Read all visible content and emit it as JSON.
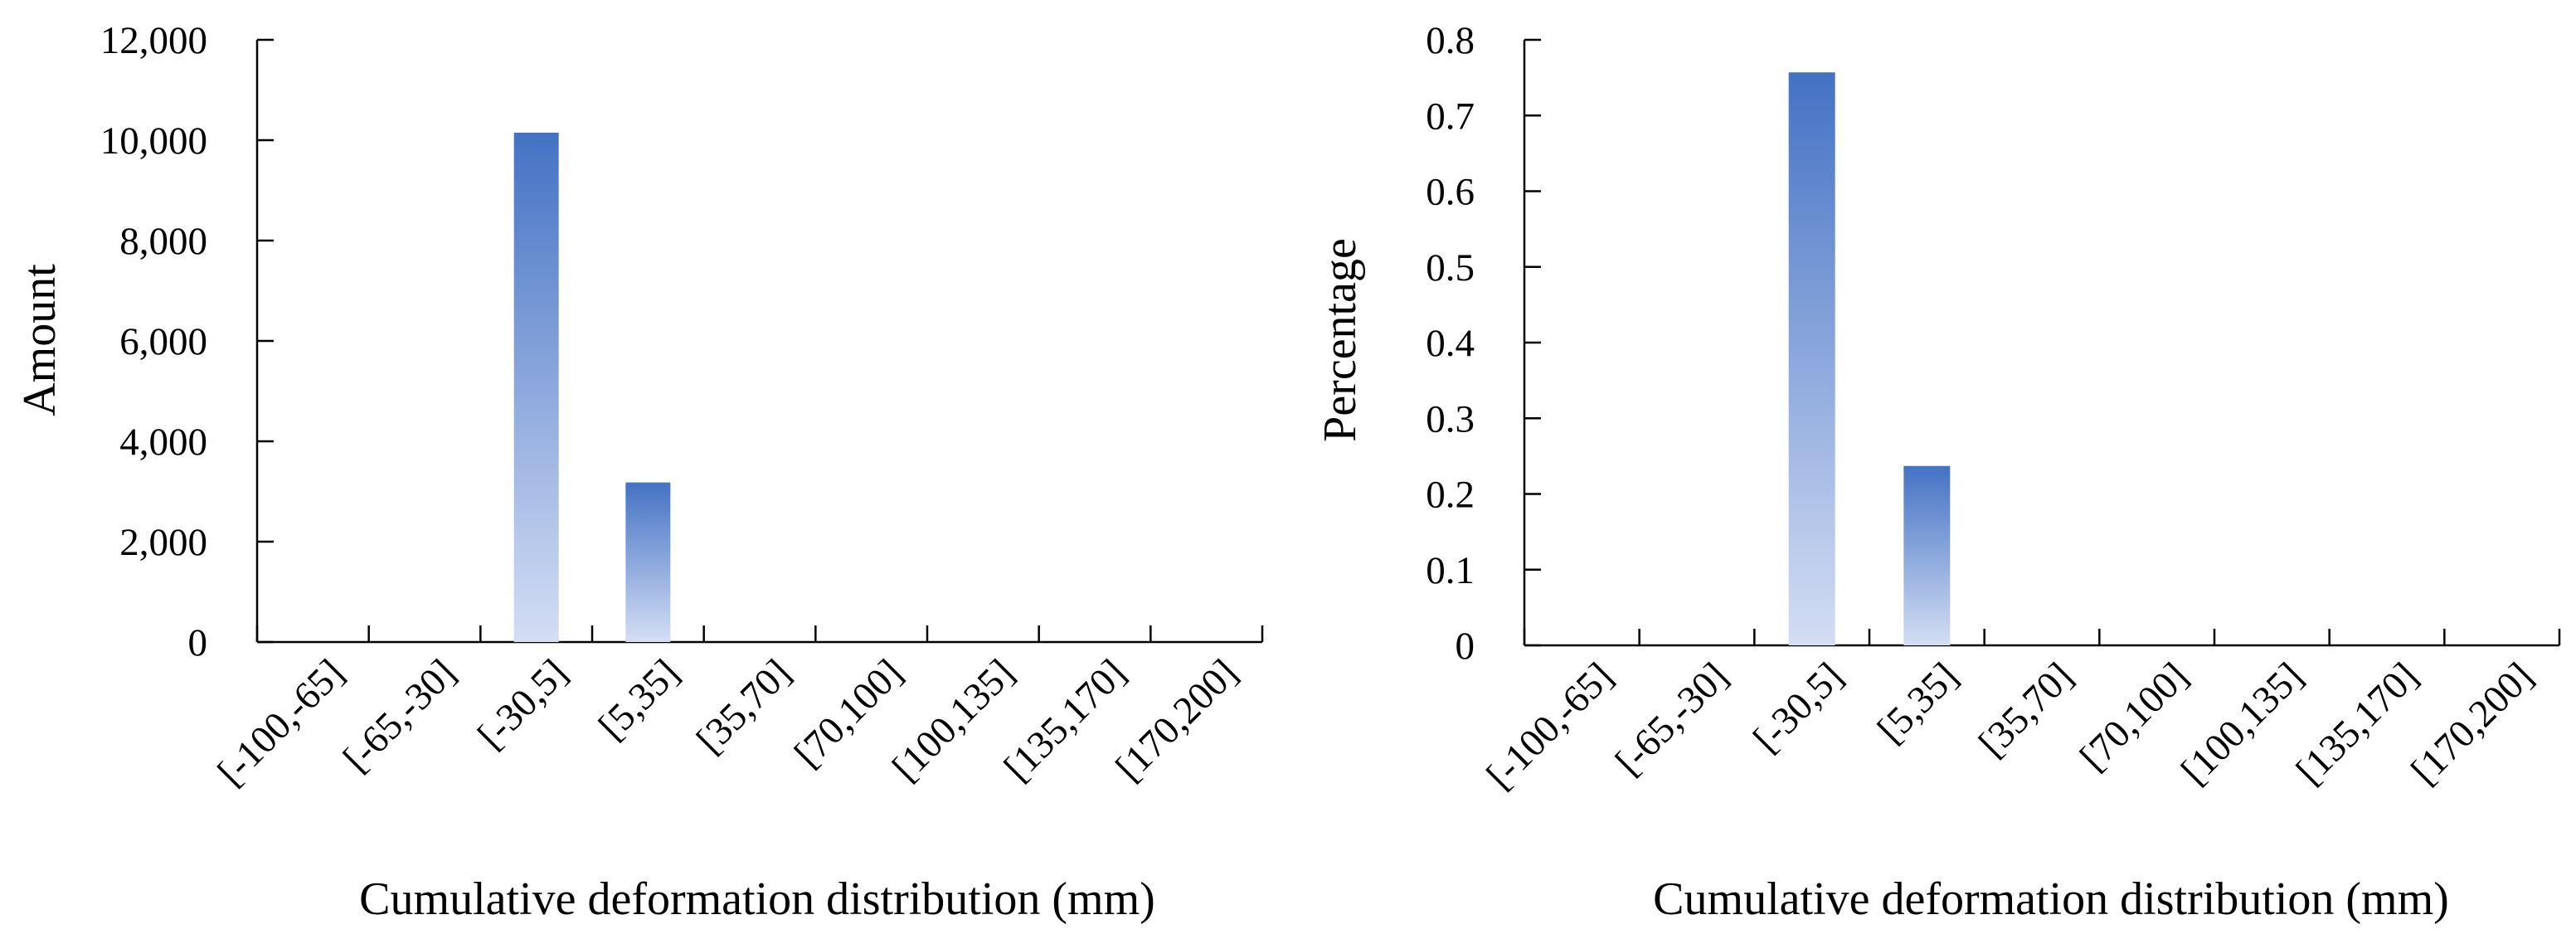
{
  "colors": {
    "bar_top": "#4472C4",
    "bar_bottom": "#D4DEF4",
    "axis": "#000000",
    "background": "#FFFFFF"
  },
  "chart_data": [
    {
      "type": "bar",
      "title": "",
      "xlabel": "Cumulative deformation distribution (mm)",
      "ylabel": "Amount",
      "categories": [
        "[-100,-65]",
        "[-65,-30]",
        "[-30,5]",
        "[5,35]",
        "[35,70]",
        "[70,100]",
        "[100,135]",
        "[135,170]",
        "[170,200]"
      ],
      "values": [
        0,
        0,
        10150,
        3180,
        0,
        0,
        0,
        0,
        0
      ],
      "ylim": [
        0,
        12000
      ],
      "yticks": [
        "0",
        "2,000",
        "4,000",
        "6,000",
        "8,000",
        "10,000",
        "12,000"
      ],
      "grid": false,
      "legend": "none"
    },
    {
      "type": "bar",
      "title": "",
      "xlabel": "Cumulative deformation distribution (mm)",
      "ylabel": "Percentage",
      "categories": [
        "[-100,-65]",
        "[-65,-30]",
        "[-30,5]",
        "[5,35]",
        "[35,70]",
        "[70,100]",
        "[100,135]",
        "[135,170]",
        "[170,200]"
      ],
      "values": [
        0,
        0,
        0.757,
        0.237,
        0,
        0,
        0,
        0,
        0
      ],
      "ylim": [
        0,
        0.8
      ],
      "yticks": [
        "0",
        "0.1",
        "0.2",
        "0.3",
        "0.4",
        "0.5",
        "0.6",
        "0.7",
        "0.8"
      ],
      "grid": false,
      "legend": "none"
    }
  ]
}
